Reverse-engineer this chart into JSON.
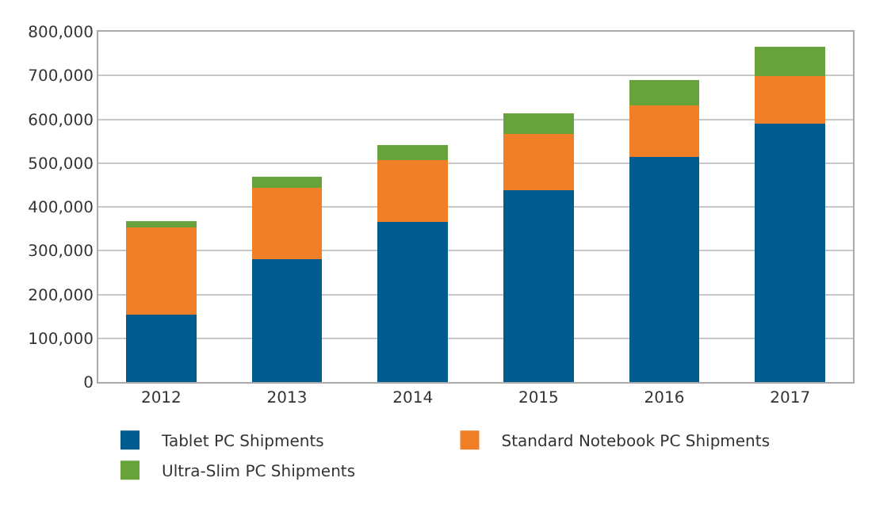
{
  "chart_data": {
    "type": "bar",
    "stacked": true,
    "categories": [
      "2012",
      "2013",
      "2014",
      "2015",
      "2016",
      "2017"
    ],
    "series": [
      {
        "name": "Tablet PC Shipments",
        "color": "#005b8f",
        "values": [
          154000,
          281000,
          365000,
          438000,
          514000,
          590000
        ]
      },
      {
        "name": "Standard Notebook PC Shipments",
        "color": "#f07f28",
        "values": [
          199000,
          163000,
          141000,
          128000,
          117000,
          108000
        ]
      },
      {
        "name": "Ultra-Slim PC Shipments",
        "color": "#67a33a",
        "values": [
          15000,
          25000,
          35000,
          48000,
          59000,
          67000
        ]
      }
    ],
    "ylim": [
      0,
      800000
    ],
    "yticks": [
      {
        "value": 0,
        "label": "0"
      },
      {
        "value": 100000,
        "label": "100,000"
      },
      {
        "value": 200000,
        "label": "200,000"
      },
      {
        "value": 300000,
        "label": "300,000"
      },
      {
        "value": 400000,
        "label": "400,000"
      },
      {
        "value": 500000,
        "label": "500,000"
      },
      {
        "value": 600000,
        "label": "600,000"
      },
      {
        "value": 700000,
        "label": "700,000"
      },
      {
        "value": 800000,
        "label": "800,000"
      }
    ],
    "grid": "y",
    "legend": "bottom"
  }
}
